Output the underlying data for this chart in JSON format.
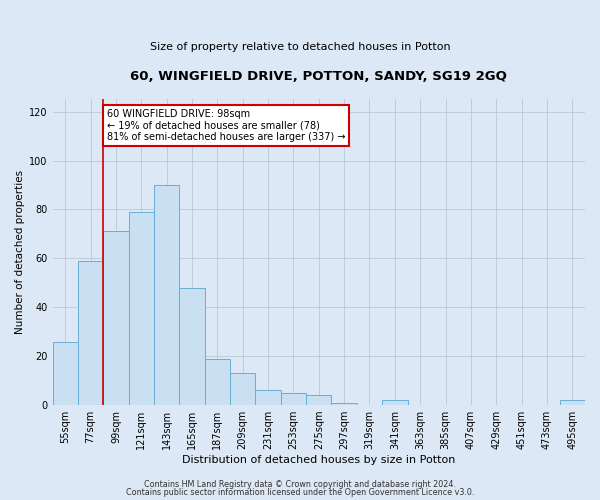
{
  "title": "60, WINGFIELD DRIVE, POTTON, SANDY, SG19 2GQ",
  "subtitle": "Size of property relative to detached houses in Potton",
  "xlabel": "Distribution of detached houses by size in Potton",
  "ylabel": "Number of detached properties",
  "bar_labels": [
    "55sqm",
    "77sqm",
    "99sqm",
    "121sqm",
    "143sqm",
    "165sqm",
    "187sqm",
    "209sqm",
    "231sqm",
    "253sqm",
    "275sqm",
    "297sqm",
    "319sqm",
    "341sqm",
    "363sqm",
    "385sqm",
    "407sqm",
    "429sqm",
    "451sqm",
    "473sqm",
    "495sqm"
  ],
  "bar_values": [
    26,
    59,
    71,
    79,
    90,
    48,
    19,
    13,
    6,
    5,
    4,
    1,
    0,
    2,
    0,
    0,
    0,
    0,
    0,
    0,
    2
  ],
  "bar_color": "#c9dff2",
  "bar_edge_color": "#6aadd5",
  "property_line_x_label": "99sqm",
  "property_line_label": "60 WINGFIELD DRIVE: 98sqm",
  "annotation_line1": "← 19% of detached houses are smaller (78)",
  "annotation_line2": "81% of semi-detached houses are larger (337) →",
  "box_color": "#ffffff",
  "box_edge_color": "#cc0000",
  "line_color": "#cc0000",
  "ylim": [
    0,
    125
  ],
  "yticks": [
    0,
    20,
    40,
    60,
    80,
    100,
    120
  ],
  "footer1": "Contains HM Land Registry data © Crown copyright and database right 2024.",
  "footer2": "Contains public sector information licensed under the Open Government Licence v3.0.",
  "bg_color": "#dce8f5",
  "bin_width": 22
}
